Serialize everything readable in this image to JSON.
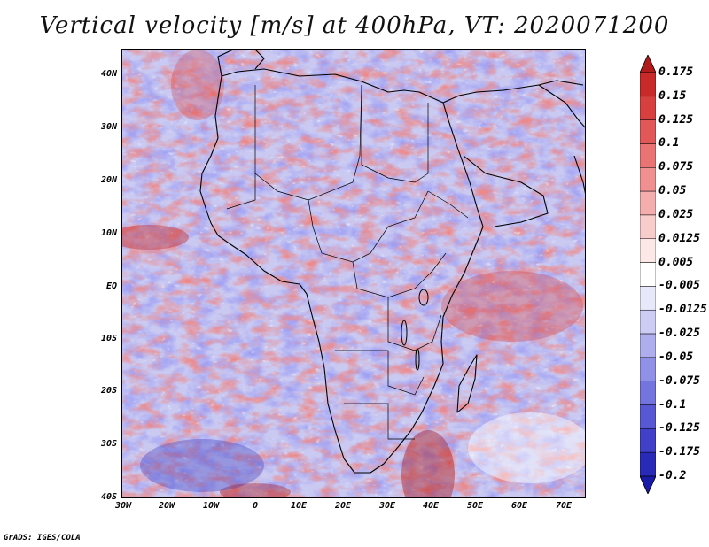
{
  "title": "Vertical velocity [m/s] at 400hPa, VT: 2020071200",
  "credit": "GrADS: IGES/COLA",
  "map": {
    "lon_range": [
      -30,
      76
    ],
    "lat_range": [
      -40,
      45
    ],
    "lat_ticks": [
      "40N",
      "30N",
      "20N",
      "10N",
      "EQ",
      "10S",
      "20S",
      "30S",
      "40S"
    ],
    "lon_ticks": [
      "30W",
      "20W",
      "10W",
      "0",
      "10E",
      "20E",
      "30E",
      "40E",
      "50E",
      "60E",
      "70E"
    ],
    "field_description": "vertical velocity shading: mottled mix of red (upward) and blue (downward) across Africa and surrounding oceans"
  },
  "colorbar": {
    "labels": [
      "0.175",
      "0.15",
      "0.125",
      "0.1",
      "0.075",
      "0.05",
      "0.025",
      "0.0125",
      "0.005",
      "-0.005",
      "-0.0125",
      "-0.025",
      "-0.05",
      "-0.075",
      "-0.1",
      "-0.125",
      "-0.175",
      "-0.2"
    ],
    "colors": [
      "#b01a1a",
      "#c82a2a",
      "#d84040",
      "#e25858",
      "#ea7474",
      "#f09090",
      "#f5aeae",
      "#f9cccc",
      "#fde8e8",
      "#ffffff",
      "#e8e8fb",
      "#ccccf5",
      "#aeaeee",
      "#9090e6",
      "#7474de",
      "#5858d4",
      "#4040c8",
      "#2a2ab8",
      "#1a1aa8"
    ]
  }
}
